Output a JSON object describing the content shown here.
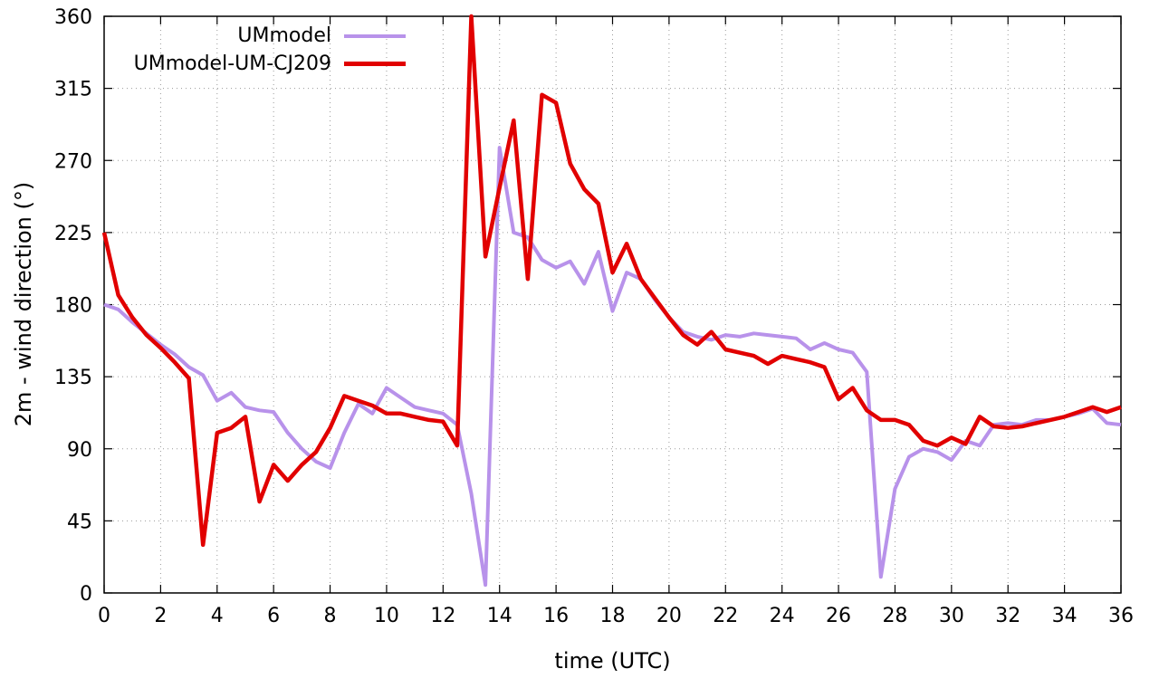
{
  "chart_data": {
    "type": "line",
    "title": "",
    "xlabel": "time (UTC)",
    "ylabel": "2m - wind direction (°)",
    "xlim": [
      0,
      36
    ],
    "ylim": [
      0,
      360
    ],
    "x_ticks": [
      0,
      2,
      4,
      6,
      8,
      10,
      12,
      14,
      16,
      18,
      20,
      22,
      24,
      26,
      28,
      30,
      32,
      34,
      36
    ],
    "y_ticks": [
      0,
      45,
      90,
      135,
      180,
      225,
      270,
      315,
      360
    ],
    "grid": true,
    "grid_color": "#9a9a9a",
    "legend_position": "top-left-inside",
    "x": [
      0,
      0.5,
      1,
      1.5,
      2,
      2.5,
      3,
      3.5,
      4,
      4.5,
      5,
      5.5,
      6,
      6.5,
      7,
      7.5,
      8,
      8.5,
      9,
      9.5,
      10,
      10.5,
      11,
      11.5,
      12,
      12.5,
      13,
      13.5,
      14,
      14.5,
      15,
      15.5,
      16,
      16.5,
      17,
      17.5,
      18,
      18.5,
      19,
      19.5,
      20,
      20.5,
      21,
      21.5,
      22,
      22.5,
      23,
      23.5,
      24,
      24.5,
      25,
      25.5,
      26,
      26.5,
      27,
      27.5,
      28,
      28.5,
      29,
      29.5,
      30,
      30.5,
      31,
      31.5,
      32,
      32.5,
      33,
      33.5,
      34,
      34.5,
      35,
      35.5,
      36
    ],
    "series": [
      {
        "name": "UMmodel",
        "color": "#b892ea",
        "width": 4,
        "values": [
          180,
          177,
          169,
          162,
          155,
          149,
          141,
          136,
          120,
          125,
          116,
          114,
          113,
          100,
          90,
          82,
          78,
          100,
          118,
          112,
          128,
          122,
          116,
          114,
          112,
          105,
          62,
          5,
          278,
          225,
          222,
          208,
          203,
          207,
          193,
          213,
          176,
          200,
          196,
          183,
          172,
          163,
          160,
          158,
          161,
          160,
          162,
          161,
          160,
          159,
          152,
          156,
          152,
          150,
          138,
          10,
          65,
          85,
          90,
          88,
          83,
          95,
          92,
          105,
          106,
          105,
          108,
          108,
          110,
          112,
          115,
          106,
          105
        ]
      },
      {
        "name": "UMmodel-UM-CJ209",
        "color": "#e10000",
        "width": 4.5,
        "values": [
          225,
          186,
          172,
          161,
          153,
          144,
          134,
          30,
          100,
          103,
          110,
          57,
          80,
          70,
          80,
          88,
          103,
          123,
          120,
          117,
          112,
          112,
          110,
          108,
          107,
          92,
          360,
          210,
          253,
          295,
          196,
          311,
          306,
          268,
          252,
          243,
          200,
          218,
          196,
          184,
          172,
          161,
          155,
          163,
          152,
          150,
          148,
          143,
          148,
          146,
          144,
          141,
          121,
          128,
          114,
          108,
          108,
          105,
          95,
          92,
          97,
          93,
          110,
          104,
          103,
          104,
          106,
          108,
          110,
          113,
          116,
          113,
          116
        ]
      }
    ]
  }
}
